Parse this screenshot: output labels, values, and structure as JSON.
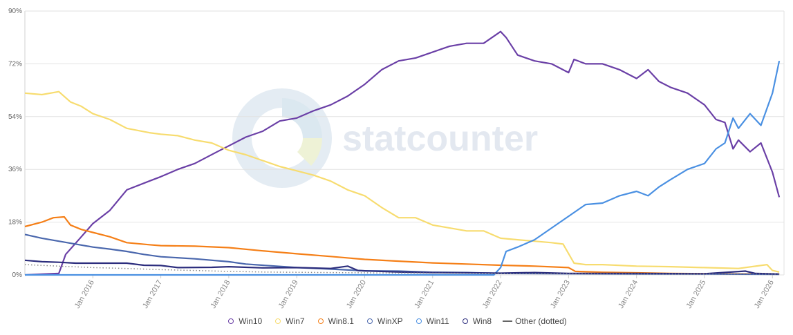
{
  "chart_data": {
    "type": "line",
    "watermark": "statcounter",
    "ylim": [
      0,
      90
    ],
    "y_ticks": [
      "0%",
      "18%",
      "36%",
      "54%",
      "72%",
      "90%"
    ],
    "y_tick_values": [
      0,
      18,
      36,
      54,
      72,
      90
    ],
    "x_range": [
      2015.0,
      2026.17
    ],
    "x_ticks": [
      "Jan 2016",
      "Jan 2017",
      "Jan 2018",
      "Jan 2019",
      "Jan 2020",
      "Jan 2021",
      "Jan 2022",
      "Jan 2023",
      "Jan 2024",
      "Jan 2025",
      "Jan 2026"
    ],
    "x_tick_values": [
      2016,
      2017,
      2018,
      2019,
      2020,
      2021,
      2022,
      2023,
      2024,
      2025,
      2026
    ],
    "grid": true,
    "legend_position": "bottom",
    "series": [
      {
        "name": "Win10",
        "color": "#6a3fa6",
        "style": "solid",
        "points": [
          [
            2015.0,
            0
          ],
          [
            2015.5,
            0.5
          ],
          [
            2015.6,
            7
          ],
          [
            2015.83,
            13
          ],
          [
            2016.0,
            17.5
          ],
          [
            2016.25,
            22
          ],
          [
            2016.5,
            29
          ],
          [
            2016.83,
            32
          ],
          [
            2017.0,
            33.5
          ],
          [
            2017.25,
            36
          ],
          [
            2017.5,
            38
          ],
          [
            2017.83,
            42
          ],
          [
            2018.0,
            44
          ],
          [
            2018.25,
            47
          ],
          [
            2018.5,
            49
          ],
          [
            2018.75,
            52.5
          ],
          [
            2019.0,
            53.5
          ],
          [
            2019.25,
            56
          ],
          [
            2019.5,
            58
          ],
          [
            2019.75,
            61
          ],
          [
            2020.0,
            65
          ],
          [
            2020.25,
            70
          ],
          [
            2020.5,
            73
          ],
          [
            2020.75,
            74
          ],
          [
            2021.0,
            76
          ],
          [
            2021.25,
            78
          ],
          [
            2021.5,
            79
          ],
          [
            2021.75,
            79
          ],
          [
            2022.0,
            83
          ],
          [
            2022.08,
            81
          ],
          [
            2022.25,
            75
          ],
          [
            2022.5,
            73
          ],
          [
            2022.75,
            72
          ],
          [
            2023.0,
            69
          ],
          [
            2023.08,
            73.5
          ],
          [
            2023.25,
            72
          ],
          [
            2023.5,
            72
          ],
          [
            2023.75,
            70
          ],
          [
            2024.0,
            67
          ],
          [
            2024.17,
            70
          ],
          [
            2024.33,
            66
          ],
          [
            2024.5,
            64
          ],
          [
            2024.75,
            62
          ],
          [
            2025.0,
            58
          ],
          [
            2025.17,
            53
          ],
          [
            2025.3,
            52
          ],
          [
            2025.42,
            43
          ],
          [
            2025.5,
            46
          ],
          [
            2025.67,
            42
          ],
          [
            2025.83,
            45
          ],
          [
            2026.0,
            35
          ],
          [
            2026.1,
            26.5
          ]
        ]
      },
      {
        "name": "Win7",
        "color": "#f7dc6f",
        "style": "solid",
        "points": [
          [
            2015.0,
            62
          ],
          [
            2015.25,
            61.5
          ],
          [
            2015.5,
            62.5
          ],
          [
            2015.67,
            59
          ],
          [
            2015.83,
            57.5
          ],
          [
            2016.0,
            55
          ],
          [
            2016.25,
            53
          ],
          [
            2016.5,
            50
          ],
          [
            2016.83,
            48.5
          ],
          [
            2017.0,
            48
          ],
          [
            2017.25,
            47.5
          ],
          [
            2017.5,
            46
          ],
          [
            2017.75,
            45
          ],
          [
            2018.0,
            42.5
          ],
          [
            2018.25,
            41
          ],
          [
            2018.5,
            39
          ],
          [
            2018.75,
            37
          ],
          [
            2019.0,
            35.5
          ],
          [
            2019.25,
            34
          ],
          [
            2019.5,
            32
          ],
          [
            2019.75,
            29
          ],
          [
            2020.0,
            27
          ],
          [
            2020.25,
            23
          ],
          [
            2020.5,
            19.5
          ],
          [
            2020.75,
            19.5
          ],
          [
            2021.0,
            17
          ],
          [
            2021.25,
            16
          ],
          [
            2021.5,
            15
          ],
          [
            2021.75,
            15
          ],
          [
            2022.0,
            12.5
          ],
          [
            2022.25,
            12
          ],
          [
            2022.5,
            11.5
          ],
          [
            2022.75,
            11
          ],
          [
            2022.92,
            10.5
          ],
          [
            2023.08,
            4
          ],
          [
            2023.25,
            3.5
          ],
          [
            2023.5,
            3.5
          ],
          [
            2024.0,
            3
          ],
          [
            2024.5,
            2.8
          ],
          [
            2025.0,
            2.5
          ],
          [
            2025.5,
            2.2
          ],
          [
            2025.92,
            3.5
          ],
          [
            2026.0,
            1.5
          ],
          [
            2026.1,
            1
          ]
        ]
      },
      {
        "name": "Win8.1",
        "color": "#f57f17",
        "style": "solid",
        "points": [
          [
            2015.0,
            16.5
          ],
          [
            2015.25,
            18
          ],
          [
            2015.42,
            19.5
          ],
          [
            2015.58,
            19.8
          ],
          [
            2015.67,
            17
          ],
          [
            2015.83,
            15.5
          ],
          [
            2016.0,
            14.5
          ],
          [
            2016.25,
            13
          ],
          [
            2016.5,
            11
          ],
          [
            2016.83,
            10.3
          ],
          [
            2017.0,
            10
          ],
          [
            2017.5,
            9.8
          ],
          [
            2018.0,
            9.3
          ],
          [
            2018.5,
            8.2
          ],
          [
            2019.0,
            7.2
          ],
          [
            2019.5,
            6.3
          ],
          [
            2020.0,
            5.3
          ],
          [
            2020.5,
            4.7
          ],
          [
            2021.0,
            4.1
          ],
          [
            2021.5,
            3.7
          ],
          [
            2022.0,
            3.3
          ],
          [
            2022.5,
            3
          ],
          [
            2023.0,
            2.5
          ],
          [
            2023.1,
            1.2
          ],
          [
            2023.5,
            0.9
          ],
          [
            2024.0,
            0.7
          ],
          [
            2024.5,
            0.5
          ],
          [
            2025.0,
            0.4
          ],
          [
            2026.1,
            0.3
          ]
        ]
      },
      {
        "name": "WinXP",
        "color": "#4a67ad",
        "style": "solid",
        "points": [
          [
            2015.0,
            13.8
          ],
          [
            2015.25,
            12.5
          ],
          [
            2015.5,
            11.5
          ],
          [
            2015.75,
            10.5
          ],
          [
            2016.0,
            9.5
          ],
          [
            2016.25,
            8.8
          ],
          [
            2016.5,
            8
          ],
          [
            2016.75,
            7
          ],
          [
            2017.0,
            6.2
          ],
          [
            2017.5,
            5.5
          ],
          [
            2018.0,
            4.5
          ],
          [
            2018.25,
            3.7
          ],
          [
            2018.5,
            3.3
          ],
          [
            2019.0,
            2.5
          ],
          [
            2019.5,
            2
          ],
          [
            2020.0,
            1.4
          ],
          [
            2020.5,
            1.3
          ],
          [
            2021.0,
            0.9
          ],
          [
            2021.5,
            0.8
          ],
          [
            2022.0,
            0.5
          ],
          [
            2023.0,
            0.4
          ],
          [
            2024.0,
            0.3
          ],
          [
            2025.0,
            0.3
          ],
          [
            2026.1,
            0.2
          ]
        ]
      },
      {
        "name": "Win11",
        "color": "#4a90e2",
        "style": "solid",
        "points": [
          [
            2015.0,
            0
          ],
          [
            2021.9,
            0
          ],
          [
            2022.0,
            2.5
          ],
          [
            2022.08,
            8
          ],
          [
            2022.25,
            9.5
          ],
          [
            2022.5,
            12
          ],
          [
            2022.75,
            16
          ],
          [
            2023.0,
            20
          ],
          [
            2023.25,
            24
          ],
          [
            2023.5,
            24.5
          ],
          [
            2023.75,
            27
          ],
          [
            2024.0,
            28.5
          ],
          [
            2024.17,
            27
          ],
          [
            2024.33,
            30
          ],
          [
            2024.5,
            32.5
          ],
          [
            2024.75,
            36
          ],
          [
            2025.0,
            38
          ],
          [
            2025.17,
            43
          ],
          [
            2025.3,
            45
          ],
          [
            2025.42,
            53.5
          ],
          [
            2025.5,
            50
          ],
          [
            2025.67,
            55
          ],
          [
            2025.83,
            51
          ],
          [
            2026.0,
            62
          ],
          [
            2026.1,
            73
          ]
        ]
      },
      {
        "name": "Win8",
        "color": "#2c2d7d",
        "style": "solid",
        "points": [
          [
            2015.0,
            5
          ],
          [
            2015.25,
            4.5
          ],
          [
            2015.5,
            4.3
          ],
          [
            2015.75,
            4
          ],
          [
            2016.0,
            4
          ],
          [
            2016.5,
            4
          ],
          [
            2016.75,
            3.3
          ],
          [
            2017.0,
            3.2
          ],
          [
            2017.25,
            2.5
          ],
          [
            2017.75,
            2.6
          ],
          [
            2018.0,
            2.8
          ],
          [
            2018.5,
            2.4
          ],
          [
            2019.0,
            2.5
          ],
          [
            2019.5,
            2.2
          ],
          [
            2019.75,
            3
          ],
          [
            2019.9,
            1.5
          ],
          [
            2020.0,
            1.4
          ],
          [
            2020.5,
            1
          ],
          [
            2021.0,
            0.8
          ],
          [
            2021.5,
            0.7
          ],
          [
            2022.0,
            0.6
          ],
          [
            2022.5,
            0.8
          ],
          [
            2023.0,
            0.5
          ],
          [
            2024.0,
            0.5
          ],
          [
            2025.0,
            0.4
          ],
          [
            2025.6,
            1.3
          ],
          [
            2025.75,
            0.5
          ],
          [
            2026.1,
            0.3
          ]
        ]
      },
      {
        "name": "Other (dotted)",
        "color": "#888888",
        "style": "dotted",
        "points": [
          [
            2015.0,
            3.5
          ],
          [
            2015.5,
            3
          ],
          [
            2016.0,
            2.5
          ],
          [
            2016.5,
            2.2
          ],
          [
            2017.0,
            1.8
          ],
          [
            2017.5,
            1.5
          ],
          [
            2018.0,
            1.2
          ],
          [
            2018.5,
            1
          ],
          [
            2019.0,
            0.9
          ],
          [
            2020.0,
            0.7
          ],
          [
            2021.0,
            0.6
          ],
          [
            2022.0,
            0.5
          ],
          [
            2023.0,
            0.4
          ],
          [
            2024.0,
            0.3
          ],
          [
            2025.0,
            0.3
          ],
          [
            2026.1,
            0.3
          ]
        ]
      }
    ]
  }
}
